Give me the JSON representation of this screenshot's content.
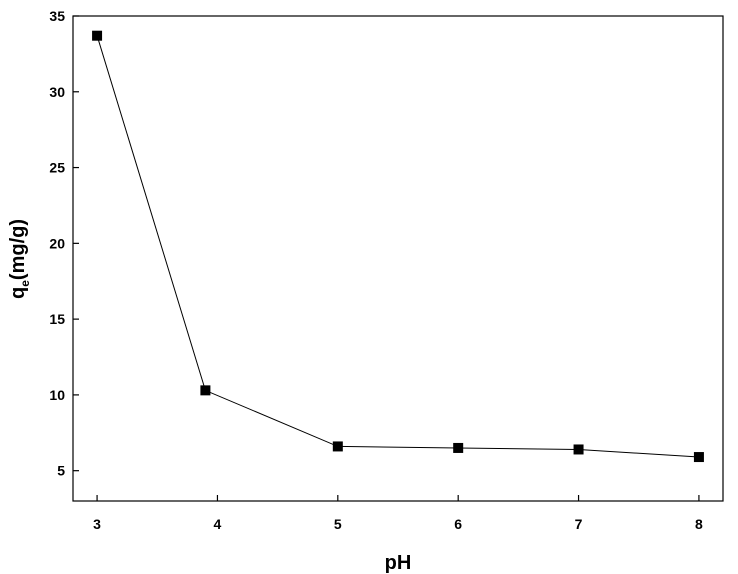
{
  "chart_data": {
    "type": "line",
    "title": "",
    "xlabel": "pH",
    "ylabel_main": "q",
    "ylabel_subscript": "e",
    "ylabel_rest": "(mg/g)",
    "xlim": [
      2.8,
      8.2
    ],
    "ylim": [
      3,
      35
    ],
    "x_ticks": [
      "3",
      "4",
      "5",
      "6",
      "7",
      "8"
    ],
    "y_ticks": [
      "5",
      "10",
      "15",
      "20",
      "25",
      "30",
      "35"
    ],
    "marker": "square",
    "color": "#000000",
    "grid": false,
    "legend": "none",
    "series": [
      {
        "x": [
          3,
          3.9,
          5,
          6,
          7,
          8
        ],
        "y": [
          33.7,
          10.3,
          6.6,
          6.5,
          6.4,
          5.9
        ]
      }
    ]
  }
}
